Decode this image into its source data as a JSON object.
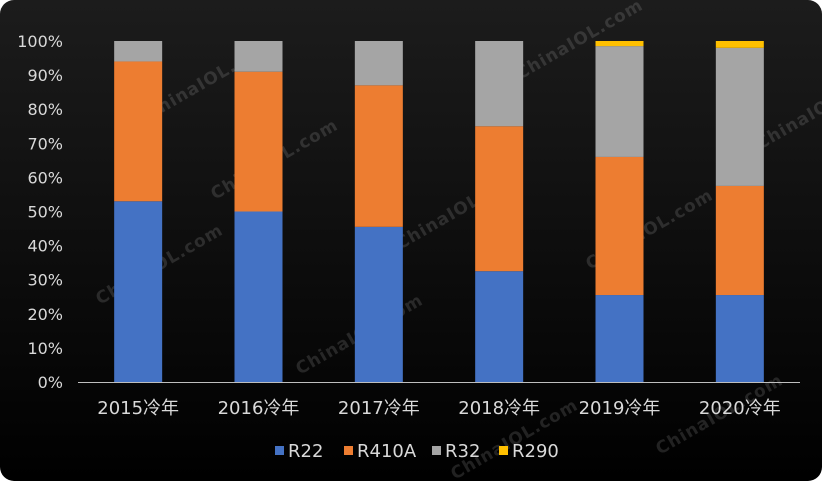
{
  "chart_data": {
    "type": "bar",
    "stacked": true,
    "categories": [
      "2015冷年",
      "2016冷年",
      "2017冷年",
      "2018冷年",
      "2019冷年",
      "2020冷年"
    ],
    "series": [
      {
        "name": "R22",
        "color": "#4472c4",
        "values": [
          53,
          50,
          45.5,
          32.5,
          25.5,
          25.5
        ]
      },
      {
        "name": "R410A",
        "color": "#ed7d31",
        "values": [
          41,
          41,
          41.5,
          42.5,
          40.5,
          32
        ]
      },
      {
        "name": "R32",
        "color": "#a5a5a5",
        "values": [
          6,
          9,
          13,
          25,
          32.5,
          40.5
        ]
      },
      {
        "name": "R290",
        "color": "#ffc000",
        "values": [
          0,
          0,
          0,
          0,
          1.5,
          2
        ]
      }
    ],
    "ylim": [
      0,
      100
    ],
    "yticks": [
      "0%",
      "10%",
      "20%",
      "30%",
      "40%",
      "50%",
      "60%",
      "70%",
      "80%",
      "90%",
      "100%"
    ],
    "legend_position": "bottom",
    "grid": false
  },
  "watermark": "ChinaIOL.com"
}
